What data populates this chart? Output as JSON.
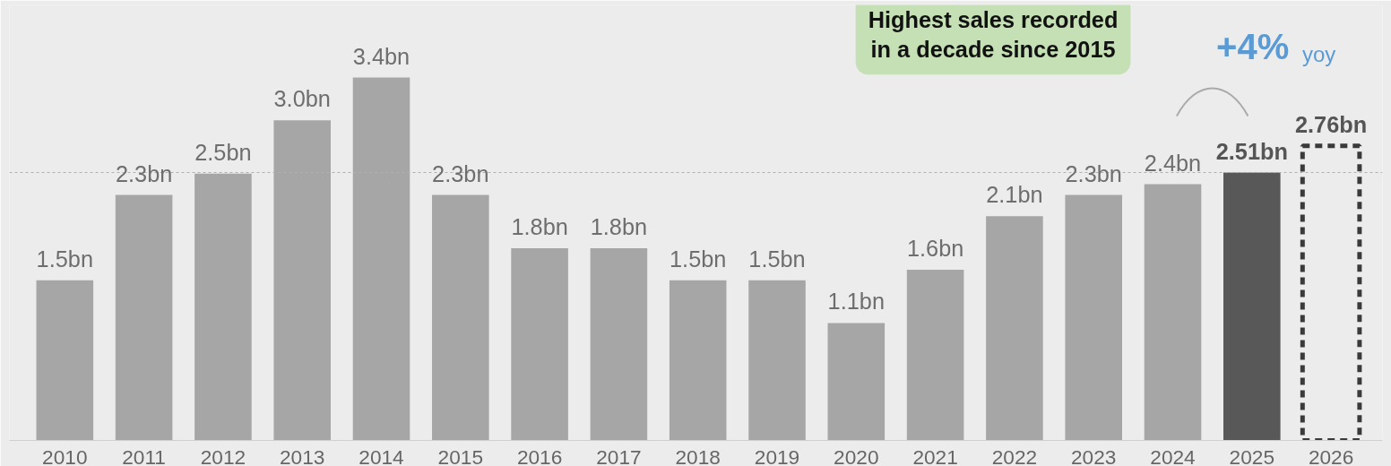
{
  "chart_data": {
    "type": "bar",
    "categories": [
      "2010",
      "2011",
      "2012",
      "2013",
      "2014",
      "2015",
      "2016",
      "2017",
      "2018",
      "2019",
      "2020",
      "2021",
      "2022",
      "2023",
      "2024",
      "2025",
      "2026"
    ],
    "series": [
      {
        "color": "#a6a6a6",
        "values": [
          1.5,
          2.3,
          2.5,
          3.0,
          3.4,
          2.3,
          1.8,
          1.8,
          1.5,
          1.5,
          1.1,
          1.6,
          2.1,
          2.3,
          2.4,
          null,
          null
        ],
        "value_labels": [
          "1.5bn",
          "2.3bn",
          "2.5bn",
          "3.0bn",
          "3.4bn",
          "2.3bn",
          "1.8bn",
          "1.8bn",
          "1.5bn",
          "1.5bn",
          "1.1bn",
          "1.6bn",
          "2.1bn",
          "2.3bn",
          "2.4bn",
          null,
          null
        ]
      },
      {
        "color": "#585858",
        "values": [
          null,
          null,
          null,
          null,
          null,
          null,
          null,
          null,
          null,
          null,
          null,
          null,
          null,
          null,
          null,
          2.51,
          null
        ],
        "value_labels": [
          null,
          null,
          null,
          null,
          null,
          null,
          null,
          null,
          null,
          null,
          null,
          null,
          null,
          null,
          null,
          "2.51bn",
          null
        ]
      },
      {
        "color": "#3a3a3a",
        "line_style": "dashed",
        "values": [
          null,
          null,
          null,
          null,
          null,
          null,
          null,
          null,
          null,
          null,
          null,
          null,
          null,
          null,
          null,
          null,
          2.76
        ],
        "value_labels": [
          null,
          null,
          null,
          null,
          null,
          null,
          null,
          null,
          null,
          null,
          null,
          null,
          null,
          null,
          null,
          null,
          "2.76bn"
        ]
      }
    ],
    "ref_lines": [
      {
        "axis": "y",
        "value": 2.51,
        "color": "#b0b0b0",
        "line_style": "dotted"
      }
    ],
    "annotations": [
      "Highest sales recorded\nin a decade since 2015",
      "+4% yoy"
    ],
    "grid": false
  }
}
